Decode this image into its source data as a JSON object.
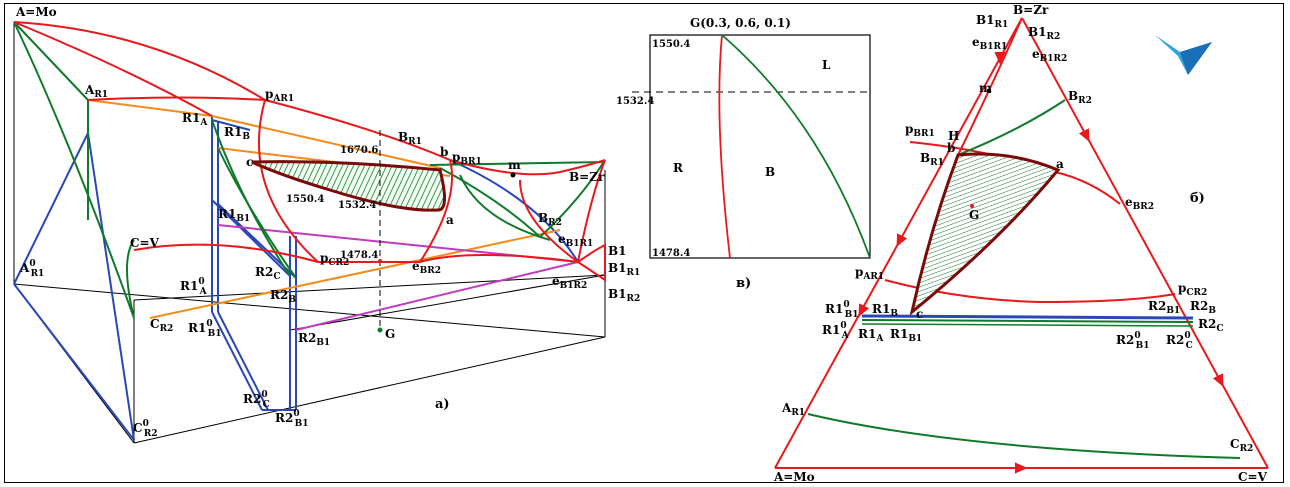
{
  "colors": {
    "red": "#e8191c",
    "green": "#0f7a2a",
    "blue": "#2a47b8",
    "orange": "#f28c1c",
    "magenta": "#c13ac0",
    "darkred": "#7a0a0a",
    "black": "#000000"
  },
  "panel_a": {
    "title": "а)",
    "vertices": {
      "a_mo": "A=Mo",
      "b_zr": "B=Zr",
      "c_v": "C=V",
      "g": "G"
    },
    "labels": {
      "ar1": "A",
      "ar1_sub": "R1",
      "ar1_0": "A",
      "ar1_0_sup": "0",
      "ar1_0_sub": "R1",
      "par1": "p",
      "par1_sub": "AR1",
      "r1a": "R1",
      "r1a_sub": "A",
      "r1b": "R1",
      "r1b_sub": "B",
      "r1b1": "R1",
      "r1b1_sub": "B1",
      "r1a0": "R1",
      "r1a0_sup": "0",
      "r1a0_sub": "A",
      "r1b10": "R1",
      "r1b10_sup": "0",
      "r1b10_sub": "B1",
      "r2c": "R2",
      "r2c_sub": "C",
      "r2b": "R2",
      "r2b_sub": "B",
      "r2b1": "R2",
      "r2b1_sub": "B1",
      "r2c0": "R2",
      "r2c0_sup": "0",
      "r2c0_sub": "C",
      "r2b10": "R2",
      "r2b10_sup": "0",
      "r2b10_sub": "B1",
      "cr2": "C",
      "cr2_sub": "R2",
      "cr20": "C",
      "cr20_sup": "0",
      "cr20_sub": "R2",
      "br1": "B",
      "br1_sub": "R1",
      "pbr1": "p",
      "pbr1_sub": "BR1",
      "br2": "B",
      "br2_sub": "R2",
      "ebr2": "e",
      "ebr2_sub": "BR2",
      "eb1r1": "e",
      "eb1r1_sub": "B1R1",
      "eb1r2": "e",
      "eb1r2_sub": "B1R2",
      "pcr2": "p",
      "pcr2_sub": "CR2",
      "b1": "B1",
      "b1r1": "B1",
      "b1r1_sub": "R1",
      "b1r2": "B1",
      "b1r2_sub": "R2",
      "b": "b",
      "c": "c",
      "a": "a",
      "m": "m"
    },
    "temps": {
      "t1670": "1670.6",
      "t1550": "1550.4",
      "t1532": "1532.4",
      "t1478": "1478.4"
    }
  },
  "panel_b": {
    "title": "б)",
    "vertices": {
      "b_zr": "B=Zr",
      "a_mo": "A=Mo",
      "c_v": "C=V"
    },
    "labels": {
      "b1r1": "B1",
      "b1r1_sub": "R1",
      "b1r2": "B1",
      "b1r2_sub": "R2",
      "eb1r1": "e",
      "eb1r1_sub": "B1R1",
      "eb1r2": "e",
      "eb1r2_sub": "B1R2",
      "m": "m",
      "br2": "B",
      "br2_sub": "R2",
      "pbr1": "p",
      "pbr1_sub": "BR1",
      "h": "H",
      "br1": "B",
      "br1_sub": "R1",
      "b": "b",
      "a": "a",
      "g": "G",
      "c": "c",
      "ebr2": "e",
      "ebr2_sub": "BR2",
      "par1": "p",
      "par1_sub": "AR1",
      "pcr2": "p",
      "pcr2_sub": "CR2",
      "r1b10": "R1",
      "r1b10_sup": "0",
      "r1b10_sub": "B1",
      "r1b": "R1",
      "r1b_sub": "B",
      "r1a0": "R1",
      "r1a0_sup": "0",
      "r1a0_sub": "A",
      "r1a": "R1",
      "r1a_sub": "A",
      "r1b1": "R1",
      "r1b1_sub": "B1",
      "r2b1": "R2",
      "r2b1_sub": "B1",
      "r2b": "R2",
      "r2b_sub": "B",
      "r2c": "R2",
      "r2c_sub": "C",
      "r2b10": "R2",
      "r2b10_sup": "0",
      "r2b10_sub": "B1",
      "r2c0": "R2",
      "r2c0_sup": "0",
      "r2c0_sub": "C",
      "ar1": "A",
      "ar1_sub": "R1",
      "cr2": "C",
      "cr2_sub": "R2"
    }
  },
  "panel_v": {
    "title": "в)",
    "header": "G(0.3, 0.6, 0.1)",
    "t_top": "1550.4",
    "t_mid": "1532.4",
    "t_bot": "1478.4",
    "region_l": "L",
    "region_r": "R",
    "region_b": "B"
  }
}
